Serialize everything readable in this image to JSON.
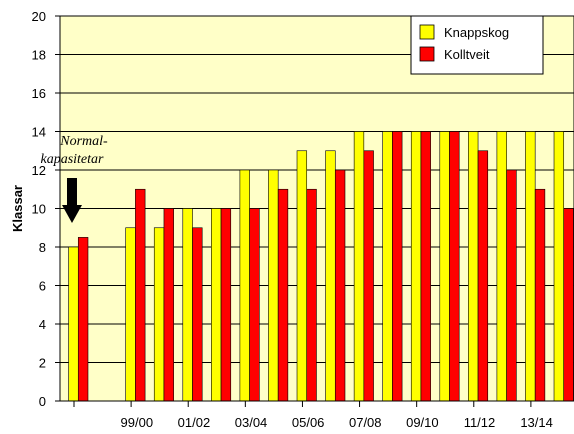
{
  "chart_data": {
    "type": "bar",
    "ylabel": "Klassar",
    "ylim": [
      0,
      20
    ],
    "yticks": [
      0,
      2,
      4,
      6,
      8,
      10,
      12,
      14,
      16,
      18,
      20
    ],
    "grid": true,
    "legend_position": "top-right",
    "plot_background": "#FFFFC8",
    "x_tick_labels": [
      "99/00",
      "01/02",
      "03/04",
      "05/06",
      "07/08",
      "09/10",
      "11/12",
      "13/14"
    ],
    "groups": [
      {
        "label": "Normal-kapasitetar",
        "values": [
          8,
          8.5
        ]
      },
      {
        "label": "",
        "values": [
          null,
          null
        ]
      },
      {
        "label": "99/00",
        "values": [
          9,
          11
        ]
      },
      {
        "label": "",
        "values": [
          9,
          10
        ]
      },
      {
        "label": "01/02",
        "values": [
          10,
          9
        ]
      },
      {
        "label": "",
        "values": [
          10,
          10
        ]
      },
      {
        "label": "03/04",
        "values": [
          12,
          10
        ]
      },
      {
        "label": "",
        "values": [
          12,
          11
        ]
      },
      {
        "label": "05/06",
        "values": [
          13,
          11
        ]
      },
      {
        "label": "",
        "values": [
          13,
          12
        ]
      },
      {
        "label": "07/08",
        "values": [
          14,
          13
        ]
      },
      {
        "label": "",
        "values": [
          14,
          14
        ]
      },
      {
        "label": "09/10",
        "values": [
          14,
          14
        ]
      },
      {
        "label": "",
        "values": [
          14,
          14
        ]
      },
      {
        "label": "11/12",
        "values": [
          14,
          13
        ]
      },
      {
        "label": "",
        "values": [
          14,
          12
        ]
      },
      {
        "label": "13/14",
        "values": [
          14,
          11
        ]
      },
      {
        "label": "",
        "values": [
          14,
          10
        ]
      }
    ],
    "series": [
      {
        "name": "Knappskog",
        "color": "#FFFF00",
        "values": [
          8,
          null,
          9,
          9,
          10,
          10,
          12,
          12,
          13,
          13,
          14,
          14,
          14,
          14,
          14,
          14,
          14,
          14
        ]
      },
      {
        "name": "Kolltveit",
        "color": "#FF0000",
        "values": [
          8.5,
          null,
          11,
          10,
          9,
          10,
          10,
          11,
          11,
          12,
          13,
          14,
          14,
          14,
          13,
          12,
          11,
          10
        ]
      }
    ],
    "annotation": {
      "line1": "Normal-",
      "line2": "kapasitetar",
      "arrow": "down"
    }
  }
}
